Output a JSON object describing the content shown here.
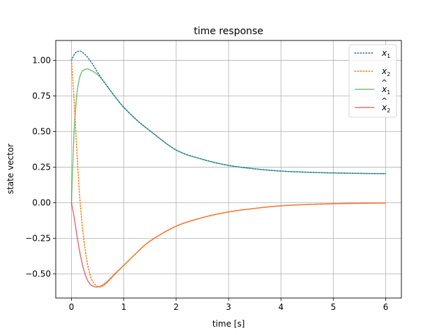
{
  "chart_data": {
    "type": "line",
    "title": "time response",
    "xlabel": "time [s]",
    "ylabel": "state vector",
    "xlim": [
      -0.3,
      6.3
    ],
    "ylim": [
      -0.67,
      1.14
    ],
    "x_ticks": [
      0,
      1,
      2,
      3,
      4,
      5,
      6
    ],
    "y_ticks": [
      -0.5,
      -0.25,
      0.0,
      0.25,
      0.5,
      0.75,
      1.0
    ],
    "x_tick_labels": [
      "0",
      "1",
      "2",
      "3",
      "4",
      "5",
      "6"
    ],
    "y_tick_labels": [
      "−0.50",
      "−0.25",
      "0.00",
      "0.25",
      "0.50",
      "0.75",
      "1.00"
    ],
    "grid": true,
    "legend_position": "top-right",
    "series": [
      {
        "name": "x₁",
        "label_base": "x",
        "label_sub": "1",
        "hat": false,
        "color": "#1f77b4",
        "style": "dotted",
        "x": [
          0,
          0.05,
          0.1,
          0.15,
          0.2,
          0.3,
          0.4,
          0.5,
          0.6,
          0.8,
          1,
          1.25,
          1.5,
          2,
          2.5,
          3,
          3.5,
          4,
          4.5,
          5,
          5.5,
          6
        ],
        "y": [
          1.0,
          1.04,
          1.06,
          1.065,
          1.06,
          1.025,
          0.975,
          0.915,
          0.86,
          0.76,
          0.67,
          0.58,
          0.505,
          0.37,
          0.305,
          0.262,
          0.238,
          0.222,
          0.214,
          0.209,
          0.206,
          0.204
        ]
      },
      {
        "name": "x₂",
        "label_base": "x",
        "label_sub": "2",
        "hat": false,
        "color": "#ff7f0e",
        "style": "dotted",
        "x": [
          0,
          0.05,
          0.1,
          0.15,
          0.2,
          0.25,
          0.3,
          0.35,
          0.4,
          0.5,
          0.6,
          0.7,
          0.8,
          1,
          1.25,
          1.5,
          2,
          2.5,
          3,
          3.5,
          4,
          4.5,
          5,
          5.5,
          6
        ],
        "y": [
          1.0,
          0.72,
          0.38,
          0.08,
          -0.14,
          -0.3,
          -0.42,
          -0.5,
          -0.55,
          -0.59,
          -0.585,
          -0.555,
          -0.515,
          -0.44,
          -0.35,
          -0.27,
          -0.165,
          -0.105,
          -0.065,
          -0.04,
          -0.022,
          -0.013,
          -0.007,
          -0.004,
          -0.002
        ]
      },
      {
        "name": "x̂₁",
        "label_base": "x",
        "label_sub": "1",
        "hat": true,
        "color": "#2ca02c",
        "style": "solid",
        "x": [
          0,
          0.02,
          0.05,
          0.1,
          0.15,
          0.2,
          0.25,
          0.3,
          0.35,
          0.4,
          0.5,
          0.6,
          0.8,
          1,
          1.25,
          1.5,
          2,
          2.5,
          3,
          3.5,
          4,
          4.5,
          5,
          5.5,
          6
        ],
        "y": [
          0.0,
          0.22,
          0.5,
          0.75,
          0.87,
          0.92,
          0.935,
          0.94,
          0.935,
          0.925,
          0.9,
          0.86,
          0.76,
          0.67,
          0.58,
          0.505,
          0.37,
          0.305,
          0.262,
          0.238,
          0.222,
          0.214,
          0.209,
          0.206,
          0.204
        ]
      },
      {
        "name": "x̂₂",
        "label_base": "x",
        "label_sub": "2",
        "hat": true,
        "color": "#d62728",
        "style": "solid",
        "x": [
          0,
          0.05,
          0.1,
          0.15,
          0.2,
          0.25,
          0.3,
          0.35,
          0.4,
          0.45,
          0.5,
          0.55,
          0.6,
          0.7,
          0.8,
          1,
          1.25,
          1.5,
          2,
          2.5,
          3,
          3.5,
          4,
          4.5,
          5,
          5.5,
          6
        ],
        "y": [
          0.0,
          -0.1,
          -0.22,
          -0.33,
          -0.42,
          -0.49,
          -0.54,
          -0.57,
          -0.585,
          -0.592,
          -0.592,
          -0.587,
          -0.578,
          -0.548,
          -0.51,
          -0.44,
          -0.35,
          -0.27,
          -0.165,
          -0.105,
          -0.065,
          -0.04,
          -0.022,
          -0.013,
          -0.007,
          -0.004,
          -0.002
        ]
      }
    ]
  }
}
